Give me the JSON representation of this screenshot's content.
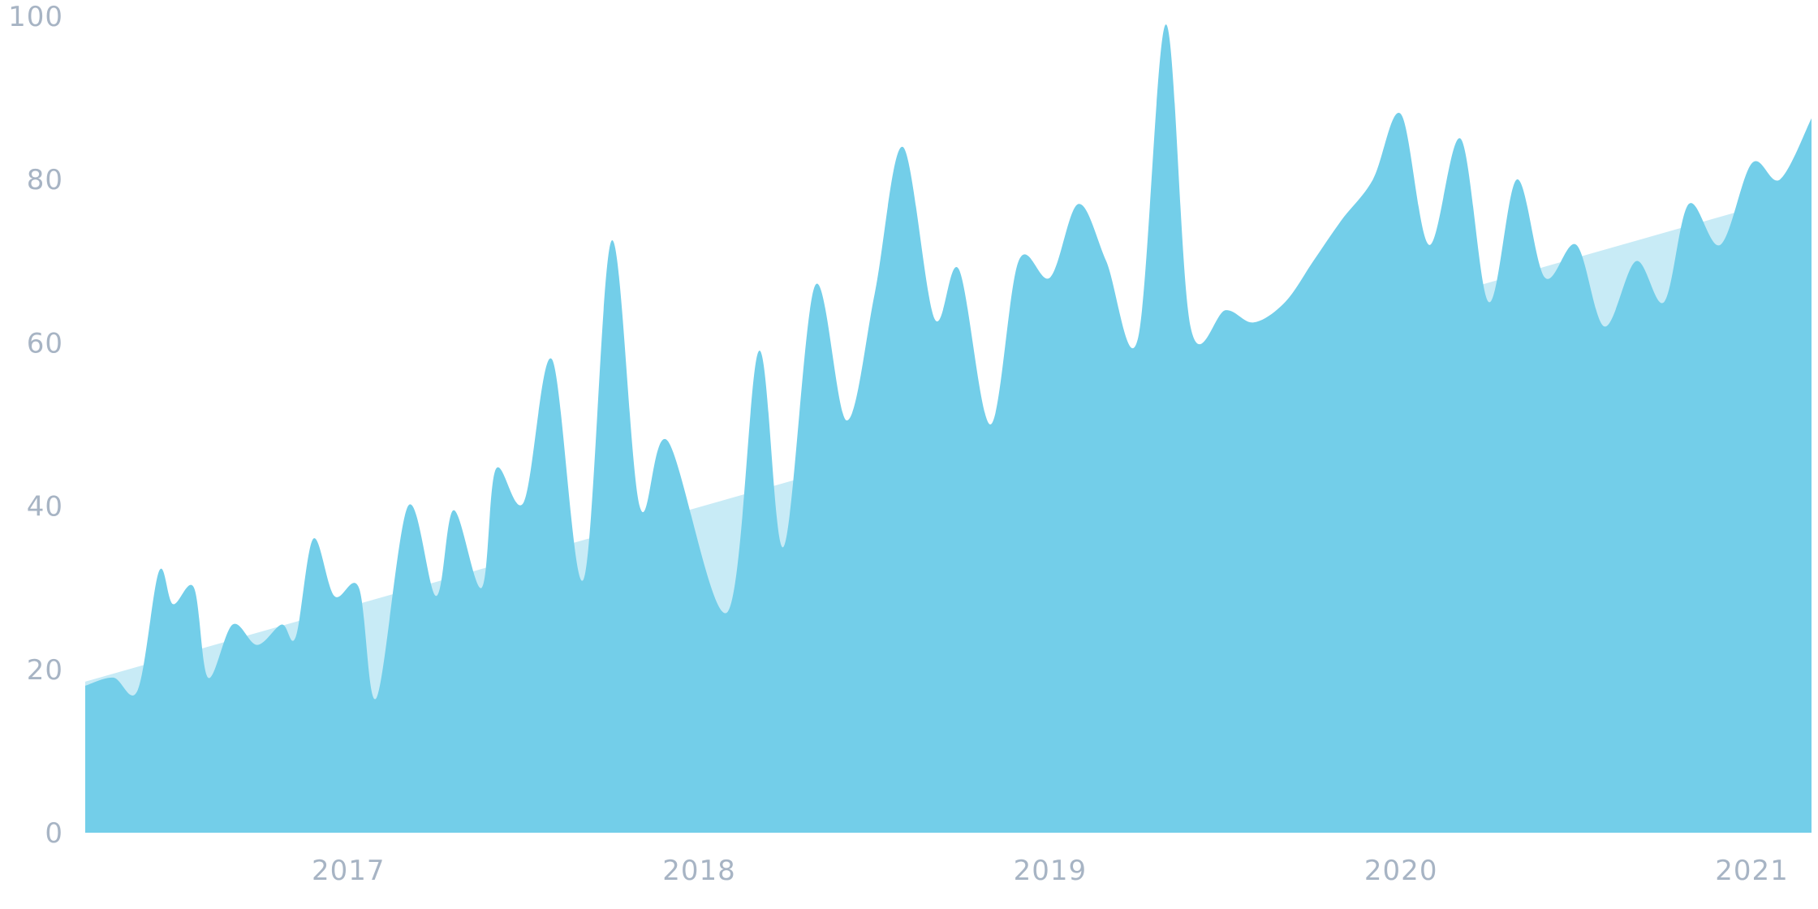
{
  "colors": {
    "series": "#73cee9",
    "trend": "#c8ebf6",
    "tick_text": "#a7b4c4"
  },
  "chart_data": {
    "type": "area",
    "title": "",
    "xlabel": "",
    "ylabel": "",
    "ylim": [
      0,
      100
    ],
    "xlim": [
      2016.25,
      2021.17
    ],
    "grid": false,
    "legend": "none",
    "y_ticks": [
      0,
      20,
      40,
      60,
      80,
      100
    ],
    "x_ticks": [
      {
        "value": 2017,
        "label": "2017"
      },
      {
        "value": 2018,
        "label": "2018"
      },
      {
        "value": 2019,
        "label": "2019"
      },
      {
        "value": 2020,
        "label": "2020"
      },
      {
        "value": 2021,
        "label": "2021"
      }
    ],
    "trend": {
      "x": [
        2016.25,
        2021.12
      ],
      "y": [
        18.5,
        78
      ]
    },
    "series": [
      {
        "x": [
          2016.25,
          2016.33,
          2016.4,
          2016.46,
          2016.5,
          2016.56,
          2016.6,
          2016.67,
          2016.74,
          2016.81,
          2016.85,
          2016.9,
          2016.96,
          2017.03,
          2017.08,
          2017.17,
          2017.25,
          2017.3,
          2017.38,
          2017.42,
          2017.5,
          2017.58,
          2017.67,
          2017.75,
          2017.83,
          2017.91,
          2018.08,
          2018.17,
          2018.24,
          2018.33,
          2018.42,
          2018.5,
          2018.58,
          2018.67,
          2018.74,
          2018.83,
          2018.91,
          2019.0,
          2019.08,
          2019.16,
          2019.25,
          2019.33,
          2019.4,
          2019.5,
          2019.58,
          2019.67,
          2019.75,
          2019.83,
          2019.92,
          2020.0,
          2020.08,
          2020.17,
          2020.25,
          2020.33,
          2020.41,
          2020.5,
          2020.58,
          2020.67,
          2020.75,
          2020.82,
          2020.91,
          2021.0,
          2021.08,
          2021.17
        ],
        "y": [
          18,
          19,
          17.5,
          32,
          28,
          30,
          19,
          25.5,
          23,
          25.5,
          24,
          36,
          29,
          30,
          16.5,
          40,
          29,
          39.5,
          30,
          44.5,
          40.5,
          58,
          31,
          72.5,
          40,
          48,
          27,
          59,
          35,
          67,
          50.5,
          66,
          84,
          63,
          69,
          50,
          70,
          68,
          77,
          70,
          60.5,
          99,
          62,
          64,
          62.5,
          65,
          70,
          75,
          80,
          88,
          72,
          85,
          65,
          80,
          68,
          72,
          62,
          70,
          65,
          77,
          72,
          82,
          80,
          87.5
        ]
      }
    ]
  }
}
